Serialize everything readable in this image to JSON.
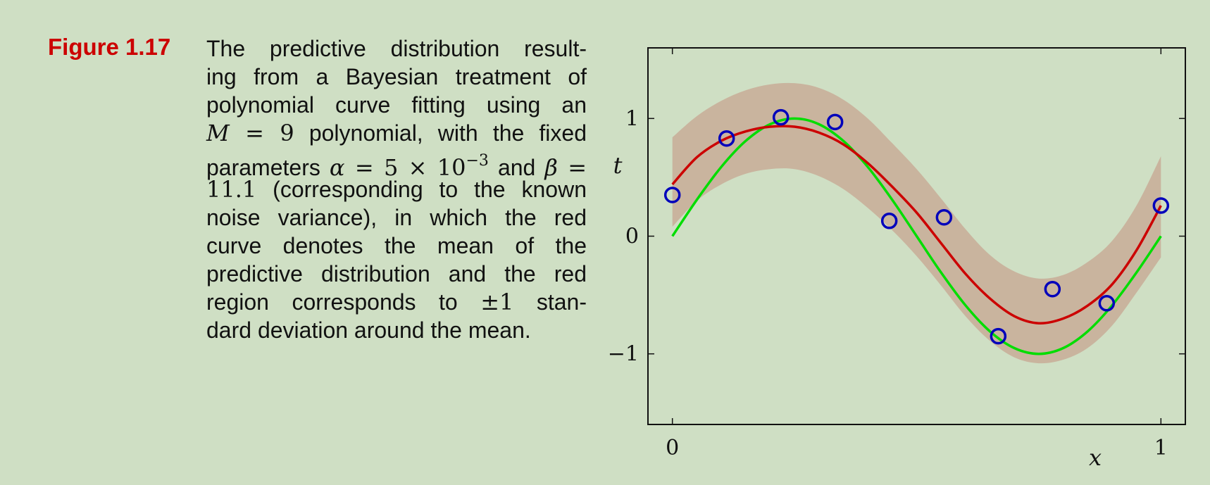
{
  "figure": {
    "label": "Figure 1.17",
    "caption_lines": [
      [
        {
          "t": "The predictive distribution result-"
        }
      ],
      [
        {
          "t": "ing from a Bayesian treatment of"
        }
      ],
      [
        {
          "t": "polynomial curve fitting using an"
        }
      ],
      [
        {
          "t": "M",
          "c": "mi"
        },
        {
          "t": " = 9",
          "c": "m"
        },
        {
          "t": " polynomial, with the fixed"
        }
      ],
      [
        {
          "t": "parameters "
        },
        {
          "t": "α",
          "c": "mi"
        },
        {
          "t": " = 5 × 10",
          "c": "m"
        },
        {
          "t": "−3",
          "c": "sup"
        },
        {
          "t": " and "
        },
        {
          "t": "β",
          "c": "mi"
        },
        {
          "t": " =",
          "c": "m"
        }
      ],
      [
        {
          "t": "11.1",
          "c": "m"
        },
        {
          "t": " (corresponding to the known"
        }
      ],
      [
        {
          "t": "noise variance), in which the red"
        }
      ],
      [
        {
          "t": "curve denotes the mean of the"
        }
      ],
      [
        {
          "t": "predictive distribution and the red"
        }
      ],
      [
        {
          "t": "region corresponds to "
        },
        {
          "t": "±1",
          "c": "m"
        },
        {
          "t": " stan-"
        }
      ],
      [
        {
          "t": "dard deviation around the mean."
        }
      ]
    ]
  },
  "chart_data": {
    "type": "line",
    "xlabel": "x",
    "ylabel": "t",
    "xlim": [
      -0.05,
      1.05
    ],
    "ylim": [
      -1.6,
      1.6
    ],
    "xticks": [
      {
        "value": 0,
        "label": "0"
      },
      {
        "value": 1,
        "label": "1"
      }
    ],
    "yticks": [
      {
        "value": -1,
        "label": "−1"
      },
      {
        "value": 0,
        "label": "0"
      },
      {
        "value": 1,
        "label": "1"
      }
    ],
    "grid": false,
    "data_points": {
      "marker": "circle",
      "color": "#0000bb",
      "x": [
        0,
        0.111,
        0.222,
        0.333,
        0.444,
        0.556,
        0.667,
        0.778,
        0.889,
        1.0
      ],
      "y": [
        0.35,
        0.83,
        1.01,
        0.97,
        0.13,
        0.16,
        -0.85,
        -0.45,
        -0.57,
        0.26
      ]
    },
    "series": [
      {
        "color": "#00dd00",
        "x": [
          0,
          0.05,
          0.1,
          0.15,
          0.2,
          0.25,
          0.3,
          0.35,
          0.4,
          0.45,
          0.5,
          0.55,
          0.6,
          0.65,
          0.7,
          0.75,
          0.8,
          0.85,
          0.9,
          0.95,
          1.0
        ],
        "y": [
          0,
          0.309,
          0.588,
          0.809,
          0.951,
          1.0,
          0.951,
          0.809,
          0.588,
          0.309,
          0,
          -0.309,
          -0.588,
          -0.809,
          -0.951,
          -1.0,
          -0.951,
          -0.809,
          -0.588,
          -0.309,
          0
        ]
      },
      {
        "color": "#cc0000",
        "x": [
          0,
          0.05,
          0.1,
          0.15,
          0.2,
          0.25,
          0.3,
          0.35,
          0.4,
          0.45,
          0.5,
          0.55,
          0.6,
          0.65,
          0.7,
          0.75,
          0.8,
          0.85,
          0.9,
          0.95,
          1.0
        ],
        "y": [
          0.44,
          0.67,
          0.81,
          0.89,
          0.93,
          0.93,
          0.88,
          0.78,
          0.62,
          0.42,
          0.2,
          -0.06,
          -0.32,
          -0.53,
          -0.68,
          -0.74,
          -0.7,
          -0.59,
          -0.41,
          -0.12,
          0.26
        ]
      }
    ],
    "band": {
      "color": "#c9b49e",
      "x": [
        0,
        0.05,
        0.1,
        0.15,
        0.2,
        0.25,
        0.3,
        0.35,
        0.4,
        0.45,
        0.5,
        0.55,
        0.6,
        0.65,
        0.7,
        0.75,
        0.8,
        0.85,
        0.9,
        0.95,
        1.0
      ],
      "upper": [
        0.84,
        1.02,
        1.15,
        1.24,
        1.29,
        1.3,
        1.26,
        1.16,
        1.0,
        0.79,
        0.57,
        0.32,
        0.06,
        -0.16,
        -0.3,
        -0.36,
        -0.33,
        -0.22,
        -0.04,
        0.26,
        0.68
      ],
      "lower": [
        0.08,
        0.3,
        0.44,
        0.53,
        0.57,
        0.57,
        0.51,
        0.4,
        0.24,
        0.05,
        -0.17,
        -0.42,
        -0.68,
        -0.89,
        -1.03,
        -1.08,
        -1.05,
        -0.95,
        -0.76,
        -0.48,
        -0.18
      ]
    }
  }
}
